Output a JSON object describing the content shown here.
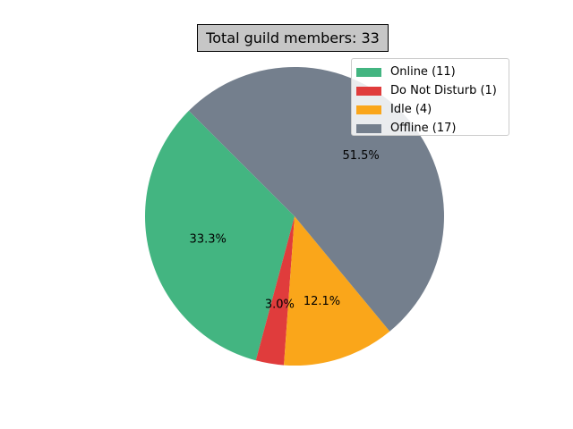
{
  "chart_data": {
    "type": "pie",
    "title": "Total guild members: 33",
    "legend_position": "top-right",
    "start_angle_deg": 135,
    "slices": [
      {
        "label": "Online (11)",
        "value": 11,
        "pct_label": "33.3%",
        "color": "#43b581"
      },
      {
        "label": "Do Not Disturb (1)",
        "value": 1,
        "pct_label": "3.0%",
        "color": "#e03c3c"
      },
      {
        "label": "Idle (4)",
        "value": 4,
        "pct_label": "12.1%",
        "color": "#faa61a"
      },
      {
        "label": "Offline (17)",
        "value": 17,
        "pct_label": "51.5%",
        "color": "#747f8d"
      }
    ]
  }
}
